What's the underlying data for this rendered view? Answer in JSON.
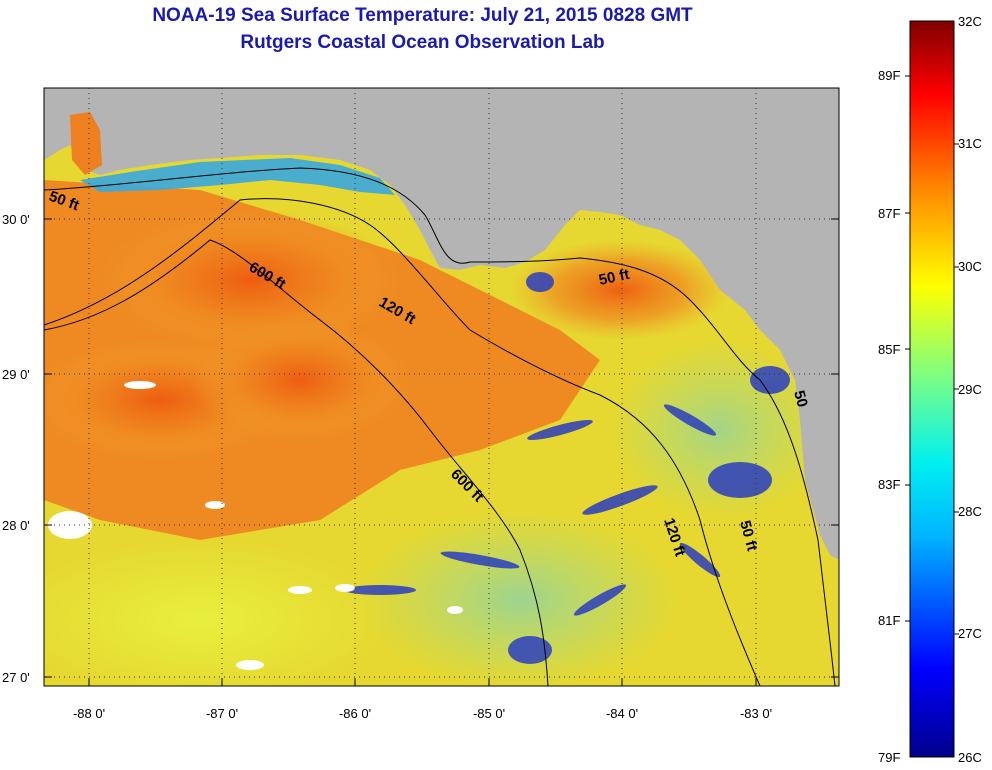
{
  "header": {
    "title_line1": "NOAA-19 Sea Surface Temperature:  July 21, 2015 0828 GMT",
    "title_line2": "Rutgers Coastal Ocean Observation Lab"
  },
  "map": {
    "lat_labels": [
      "30 0'",
      "29 0'",
      "28 0'",
      "27 0'"
    ],
    "lon_labels": [
      "-88 0'",
      "-87 0'",
      "-86 0'",
      "-85 0'",
      "-84 0'",
      "-83 0'"
    ],
    "contour_labels": [
      "50 ft",
      "600 ft",
      "120 ft",
      "50 ft",
      "600 ft",
      "120 ft",
      "50 ft",
      "50"
    ],
    "colors": {
      "land": "#b4b4b4",
      "warm": "#f07a18",
      "mid": "#e8e030",
      "cool": "#2a48c8"
    }
  },
  "colorbar": {
    "fahrenheit_labels": [
      "89F",
      "87F",
      "85F",
      "83F",
      "81F",
      "79F"
    ],
    "celsius_labels": [
      "32C",
      "31C",
      "30C",
      "29C",
      "28C",
      "27C",
      "26C"
    ]
  }
}
